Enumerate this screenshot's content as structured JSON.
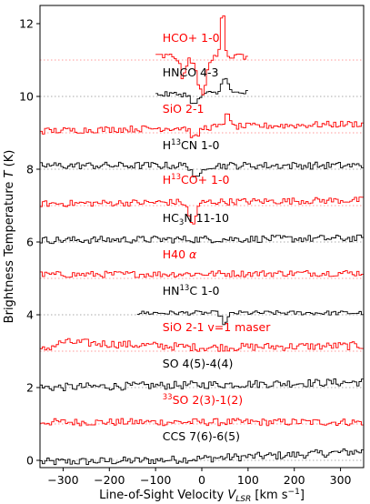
{
  "chart_data": {
    "type": "line",
    "title": "",
    "xlabel": "Line-of-Sight Velocity V_LSR [km s^-1]",
    "ylabel": "Brightness Temperature T (K)",
    "xlim": [
      -350,
      350
    ],
    "ylim": [
      -0.2,
      12.5
    ],
    "x_ticks": [
      -300,
      -200,
      -100,
      0,
      100,
      200,
      300
    ],
    "y_ticks": [
      0,
      2,
      4,
      6,
      8,
      10,
      12
    ],
    "x_tick_labels": [
      "−300",
      "−200",
      "−100",
      "0",
      "100",
      "200",
      "300"
    ],
    "y_tick_labels": [
      "0",
      "2",
      "4",
      "6",
      "8",
      "10",
      "12"
    ],
    "colors": {
      "black": "#000000",
      "red": "#ff0000",
      "baseline": "#aaaaaa"
    },
    "series": [
      {
        "name": "CCS 7(6)-6(5)",
        "offset": 0,
        "color": "black",
        "label_y": 0.55,
        "x_range": [
          -350,
          350
        ],
        "trend": [
          [
            -350,
            -0.05
          ],
          [
            -100,
            0.0
          ],
          [
            200,
            0.15
          ],
          [
            350,
            0.25
          ]
        ],
        "noise": 0.22,
        "features": []
      },
      {
        "name": "33SO 2(3)-1(2)",
        "offset": 1,
        "color": "red",
        "label_y": 1.55,
        "x_range": [
          -350,
          350
        ],
        "trend": [
          [
            -350,
            0.05
          ],
          [
            350,
            0.05
          ]
        ],
        "noise": 0.2,
        "features": []
      },
      {
        "name": "SO 4(5)-4(4)",
        "offset": 2,
        "color": "black",
        "label_y": 2.55,
        "x_range": [
          -350,
          350
        ],
        "trend": [
          [
            -350,
            0.0
          ],
          [
            350,
            0.15
          ]
        ],
        "noise": 0.22,
        "features": []
      },
      {
        "name": "SiO 2-1 v=1 maser",
        "offset": 3,
        "color": "red",
        "label_y": 3.55,
        "x_range": [
          -350,
          350
        ],
        "trend": [
          [
            -350,
            0.0
          ],
          [
            -300,
            0.25
          ],
          [
            0,
            0.1
          ],
          [
            350,
            0.15
          ]
        ],
        "noise": 0.22,
        "features": []
      },
      {
        "name": "HN13C 1-0",
        "offset": 4,
        "color": "black",
        "label_y": 4.55,
        "x_range": [
          -140,
          350
        ],
        "trend": [
          [
            -140,
            0.05
          ],
          [
            350,
            0.05
          ]
        ],
        "noise": 0.12,
        "features": [
          [
            50,
            -0.3,
            6
          ]
        ]
      },
      {
        "name": "H40 α",
        "offset": 5,
        "color": "red",
        "label_y": 5.55,
        "x_range": [
          -350,
          350
        ],
        "trend": [
          [
            -350,
            0.1
          ],
          [
            350,
            0.15
          ]
        ],
        "noise": 0.18,
        "features": []
      },
      {
        "name": "HC3N 11-10",
        "offset": 6,
        "color": "black",
        "label_y": 6.55,
        "x_range": [
          -350,
          350
        ],
        "trend": [
          [
            -350,
            0.05
          ],
          [
            350,
            0.1
          ]
        ],
        "noise": 0.2,
        "features": []
      },
      {
        "name": "H13CO+ 1-0",
        "offset": 7,
        "color": "red",
        "label_y": 7.6,
        "x_range": [
          -350,
          350
        ],
        "trend": [
          [
            -350,
            0.05
          ],
          [
            350,
            0.15
          ]
        ],
        "noise": 0.18,
        "features": [
          [
            -20,
            -0.6,
            8
          ]
        ]
      },
      {
        "name": "H13CN 1-0",
        "offset": 8,
        "color": "black",
        "label_y": 8.55,
        "x_range": [
          -350,
          350
        ],
        "trend": [
          [
            -350,
            0.1
          ],
          [
            350,
            0.1
          ]
        ],
        "noise": 0.2,
        "features": [
          [
            -10,
            -0.4,
            8
          ]
        ]
      },
      {
        "name": "SiO 2-1",
        "offset": 9,
        "color": "red",
        "label_y": 9.55,
        "x_range": [
          -350,
          350
        ],
        "trend": [
          [
            -350,
            0.05
          ],
          [
            350,
            0.25
          ]
        ],
        "noise": 0.18,
        "features": [
          [
            55,
            0.5,
            4
          ],
          [
            -15,
            -0.3,
            8
          ]
        ]
      },
      {
        "name": "HNCO 4-3",
        "offset": 10,
        "color": "black",
        "label_y": 10.55,
        "x_range": [
          -100,
          100
        ],
        "trend": [
          [
            -100,
            0.05
          ],
          [
            100,
            0.1
          ]
        ],
        "noise": 0.15,
        "features": [
          [
            50,
            0.5,
            6
          ],
          [
            -15,
            -0.3,
            8
          ]
        ]
      },
      {
        "name": "HCO+ 1-0",
        "offset": 11,
        "color": "red",
        "label_y": 11.5,
        "x_range": [
          -100,
          100
        ],
        "trend": [
          [
            -100,
            0.1
          ],
          [
            100,
            0.1
          ]
        ],
        "noise": 0.2,
        "features": [
          [
            45,
            1.4,
            4
          ],
          [
            0,
            -1.0,
            10
          ],
          [
            -40,
            -0.6,
            6
          ]
        ]
      }
    ]
  }
}
